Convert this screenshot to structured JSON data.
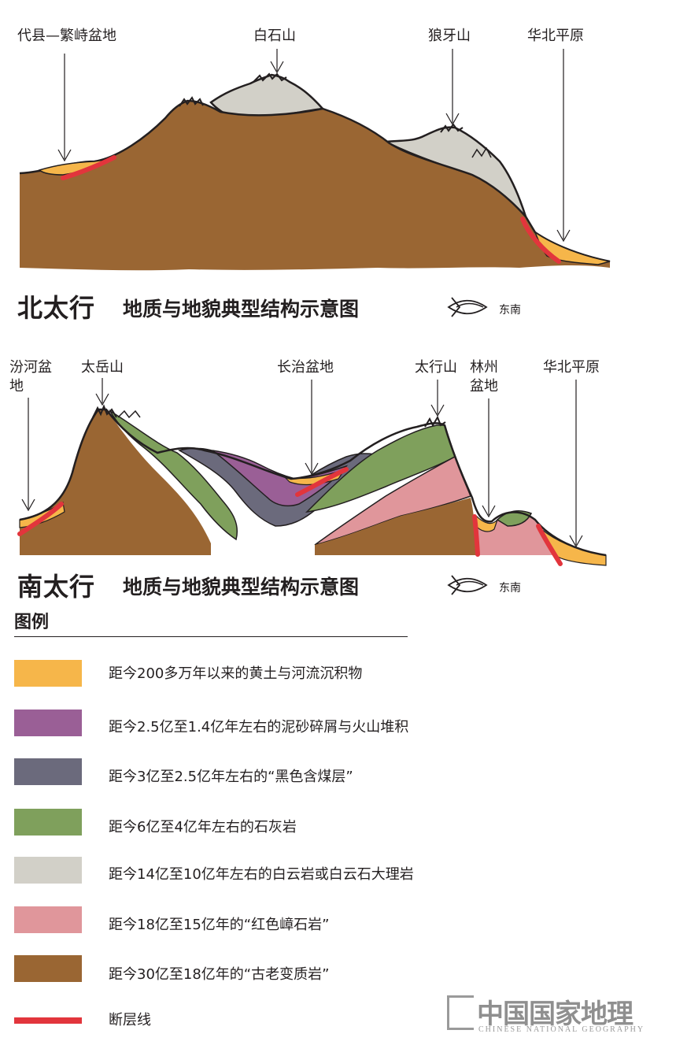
{
  "north": {
    "title_main": "北太行",
    "title_sub": "地质与地貌典型结构示意图",
    "compass_label": "东南",
    "labels": {
      "daixian": "代县—繁峙盆地",
      "baishishan": "白石山",
      "langyashan": "狼牙山",
      "huabei": "华北平原"
    }
  },
  "south": {
    "title_main": "南太行",
    "title_sub": "地质与地貌典型结构示意图",
    "compass_label": "东南",
    "labels": {
      "fenhe": "汾河盆地",
      "taiyueshan": "太岳山",
      "changzhi": "长治盆地",
      "taihangshan": "太行山",
      "linzhou": "林州盆地",
      "huabei": "华北平原"
    }
  },
  "legend": {
    "title": "图例",
    "items": [
      {
        "color": "#f6b64a",
        "text": "距今200多万年以来的黄土与河流沉积物"
      },
      {
        "color": "#9a5f96",
        "text": "距今2.5亿至1.4亿年左右的泥砂碎屑与火山堆积"
      },
      {
        "color": "#6b6a7c",
        "text": "距今3亿至2.5亿年左右的“黑色含煤层”"
      },
      {
        "color": "#7fa05c",
        "text": "距今6亿至4亿年左右的石灰岩"
      },
      {
        "color": "#d2d0c8",
        "text": "距今14亿至10亿年左右的白云岩或白云石大理岩"
      },
      {
        "color": "#e0969b",
        "text": "距今18亿至15亿年的“红色嶂石岩”"
      },
      {
        "color": "#9a6633",
        "text": "距今30亿至18亿年的“古老变质岩”"
      }
    ],
    "fault": {
      "color": "#e2353c",
      "text": "断层线"
    }
  },
  "watermark": {
    "cn": "中国国家地理",
    "en": "CHINESE NATIONAL GEOGRAPHY"
  }
}
